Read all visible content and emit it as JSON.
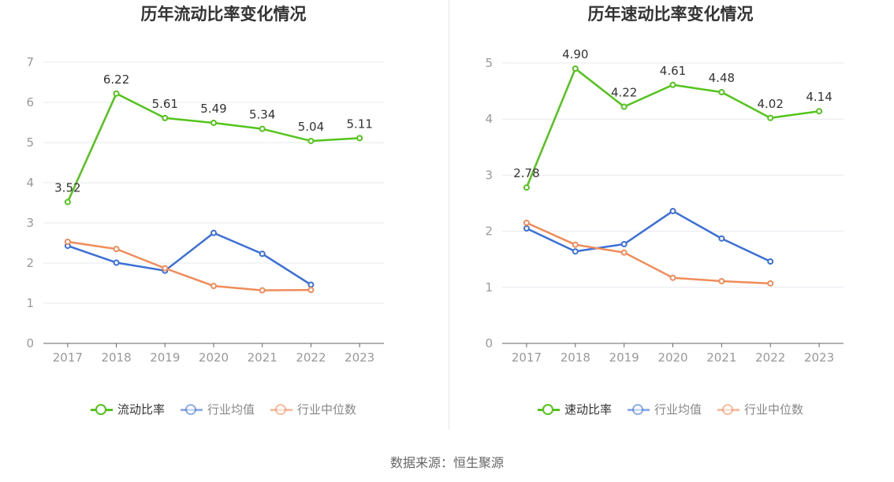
{
  "source": "数据来源：恒生聚源",
  "chart_data": [
    {
      "type": "line",
      "title": "历年流动比率变化情况",
      "categories": [
        "2017",
        "2018",
        "2019",
        "2020",
        "2021",
        "2022",
        "2023"
      ],
      "ylim": [
        0,
        7
      ],
      "yticks": [
        "0",
        "1",
        "2",
        "3",
        "4",
        "5",
        "6",
        "7"
      ],
      "grid": true,
      "legend_position": "bottom",
      "series": [
        {
          "name": "流动比率",
          "color": "#52c41a",
          "labeled": true,
          "values": [
            3.52,
            6.22,
            5.61,
            5.49,
            5.34,
            5.04,
            5.11
          ],
          "labels": [
            "3.52",
            "6.22",
            "5.61",
            "5.49",
            "5.34",
            "5.04",
            "5.11"
          ]
        },
        {
          "name": "行业均值",
          "color": "#3b6fd8",
          "labeled": false,
          "values": [
            2.43,
            2.01,
            1.81,
            2.75,
            2.23,
            1.46,
            null
          ]
        },
        {
          "name": "行业中位数",
          "color": "#f08c5a",
          "labeled": false,
          "values": [
            2.53,
            2.35,
            1.87,
            1.43,
            1.32,
            1.33,
            null
          ]
        }
      ]
    },
    {
      "type": "line",
      "title": "历年速动比率变化情况",
      "categories": [
        "2017",
        "2018",
        "2019",
        "2020",
        "2021",
        "2022",
        "2023"
      ],
      "ylim": [
        0,
        5
      ],
      "yticks": [
        "0",
        "1",
        "2",
        "3",
        "4",
        "5"
      ],
      "grid": true,
      "legend_position": "bottom",
      "series": [
        {
          "name": "速动比率",
          "color": "#52c41a",
          "labeled": true,
          "values": [
            2.78,
            4.9,
            4.22,
            4.61,
            4.48,
            4.02,
            4.14
          ],
          "labels": [
            "2.78",
            "4.90",
            "4.22",
            "4.61",
            "4.48",
            "4.02",
            "4.14"
          ]
        },
        {
          "name": "行业均值",
          "color": "#3b6fd8",
          "labeled": false,
          "values": [
            2.05,
            1.64,
            1.77,
            2.36,
            1.87,
            1.46,
            null
          ]
        },
        {
          "name": "行业中位数",
          "color": "#f08c5a",
          "labeled": false,
          "values": [
            2.15,
            1.76,
            1.62,
            1.17,
            1.11,
            1.07,
            null
          ]
        }
      ]
    }
  ]
}
